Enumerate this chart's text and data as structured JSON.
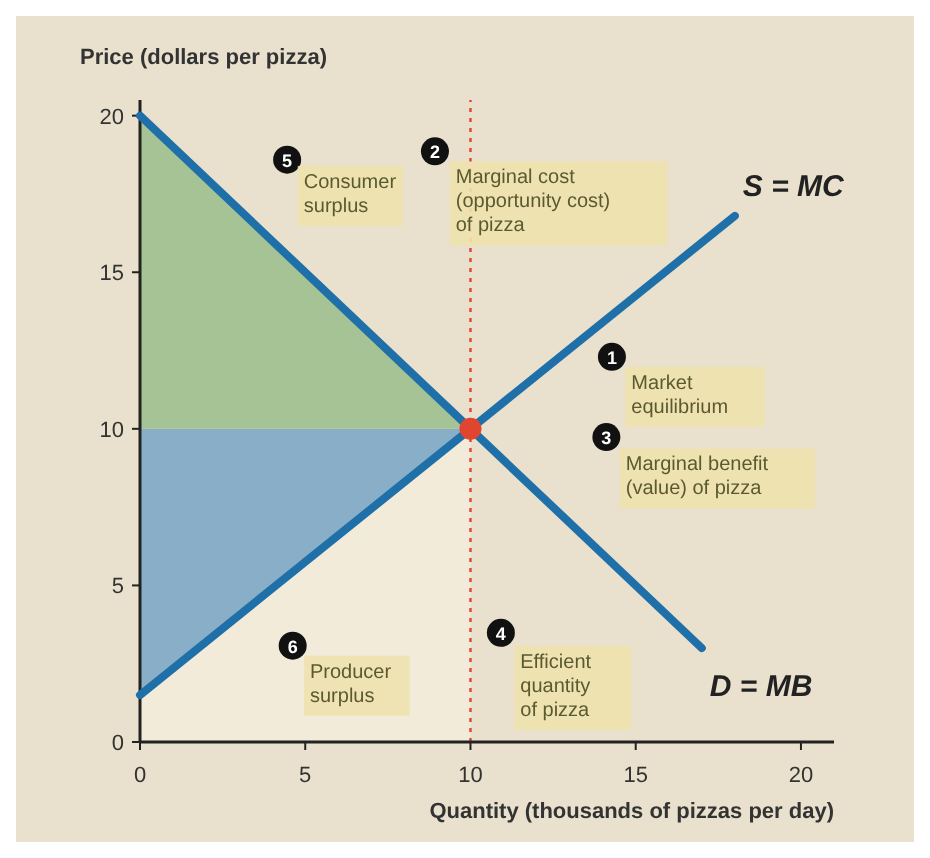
{
  "chart_data": {
    "type": "line",
    "xlabel": "Quantity (thousands of pizzas per day)",
    "ylabel": "Price (dollars per pizza)",
    "xlim": [
      0,
      21
    ],
    "xticks": [
      0,
      5,
      10,
      15,
      20
    ],
    "ylim": [
      0,
      20.5
    ],
    "yticks": [
      0,
      5,
      10,
      15,
      20
    ],
    "grid": false,
    "stacked": true,
    "series": [
      {
        "type": "area",
        "color": "#f3ecdc",
        "x": [
          0,
          10
        ],
        "values": [
          1.5,
          10
        ]
      },
      {
        "type": "area",
        "color": "#7ea9c6",
        "x": [
          0,
          10
        ],
        "values": [
          8.5,
          0
        ]
      },
      {
        "type": "area",
        "color": "#9dc08e",
        "x": [
          0,
          10
        ],
        "values": [
          10,
          0
        ]
      },
      {
        "name": "D = MB",
        "color": "#1f6fa8",
        "x": [
          0,
          17
        ],
        "values": [
          20,
          3
        ]
      },
      {
        "name": "S = MC",
        "color": "#1f6fa8",
        "x": [
          0,
          10,
          18
        ],
        "values": [
          1.5,
          10,
          16.8
        ]
      },
      {
        "type": "scatter",
        "color": "#e0452f",
        "x": [
          10
        ],
        "values": [
          10
        ]
      }
    ],
    "ref_lines": [
      {
        "axis": "x",
        "value": 10,
        "color": "#e0452f",
        "line_style": "dotted"
      }
    ],
    "annotations": [
      "5",
      "Consumer\nsurplus",
      "2",
      "Marginal cost\n(opportunity cost)\nof pizza",
      "1",
      "Market\nequilibrium",
      "3",
      "Marginal benefit\n(value) of pizza",
      "6",
      "Producer\nsurplus",
      "4",
      "Efficient\nquantity\nof pizza"
    ]
  }
}
